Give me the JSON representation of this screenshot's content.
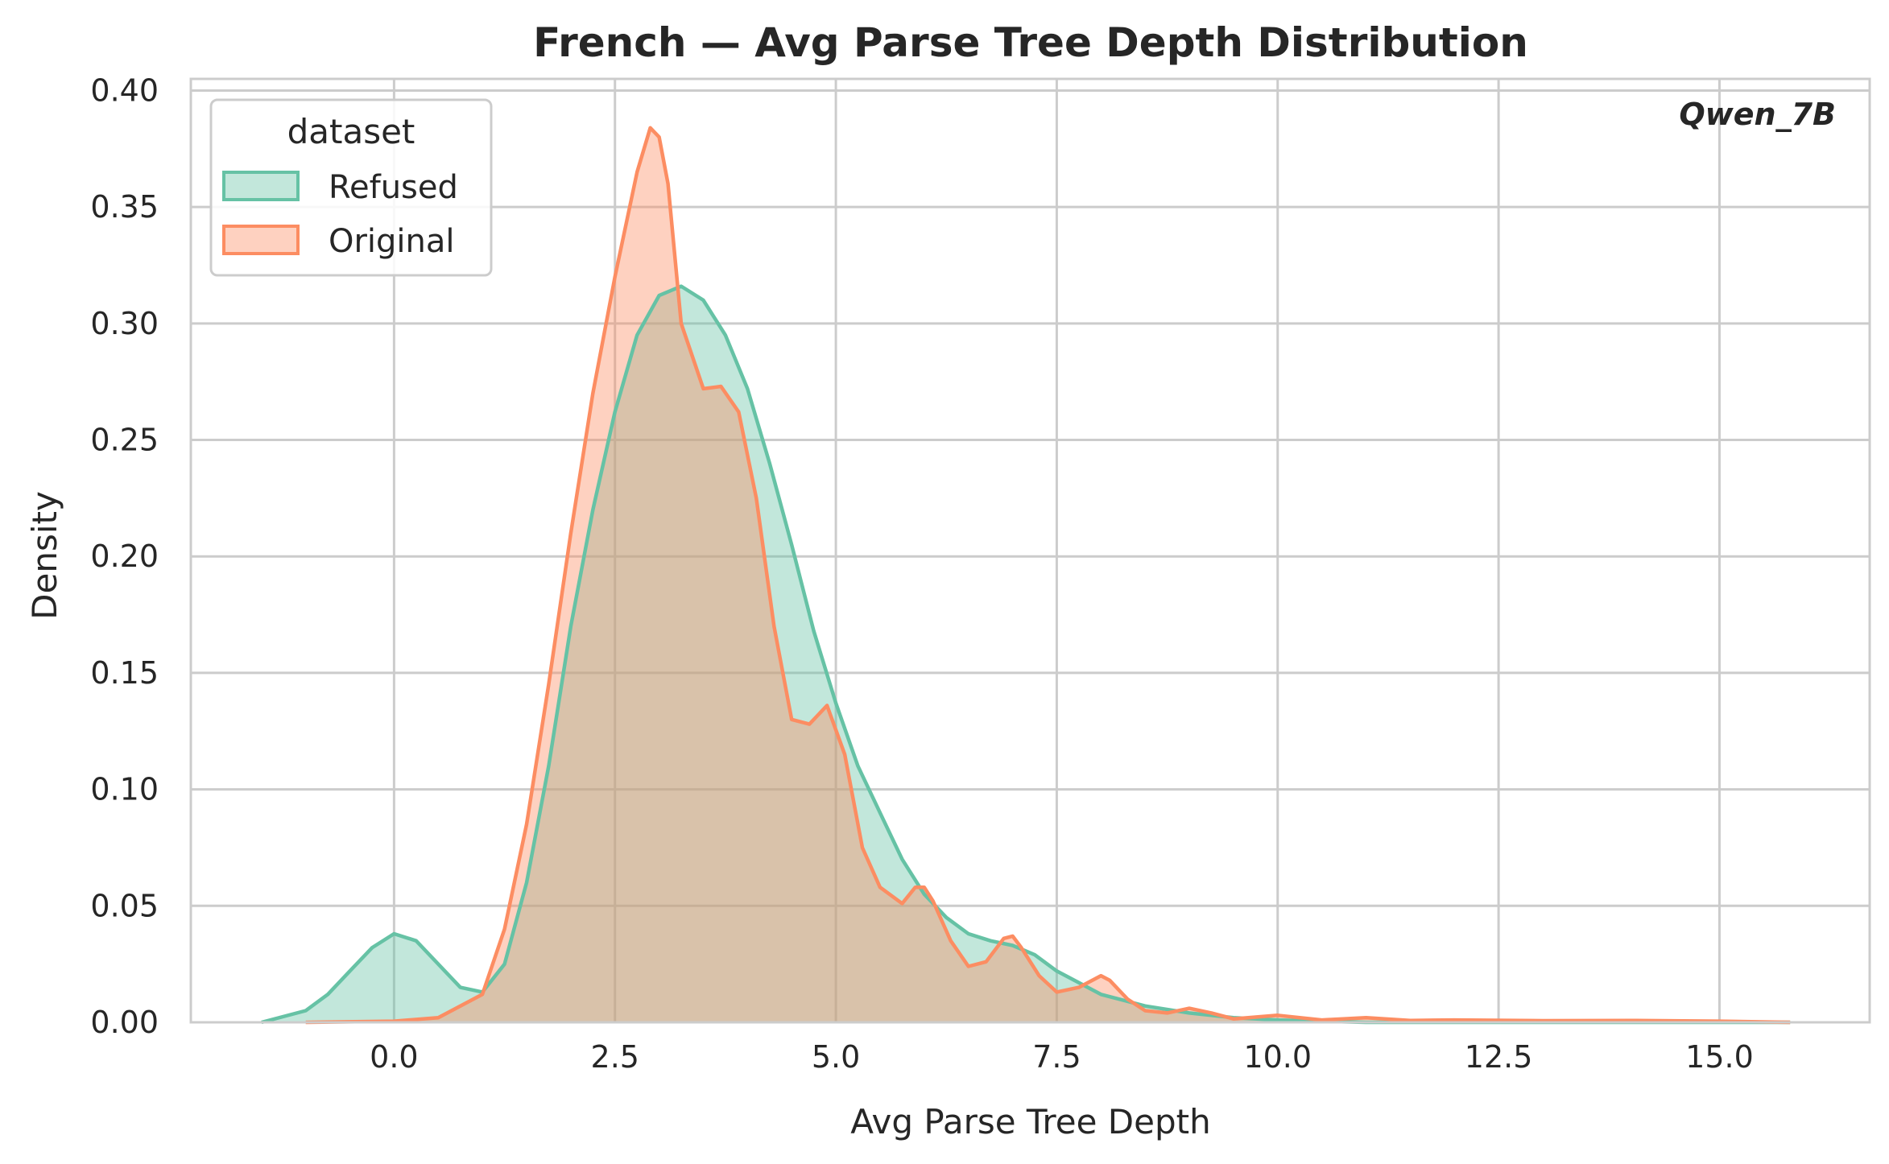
{
  "chart_data": {
    "type": "area",
    "title": "French — Avg Parse Tree Depth Distribution",
    "xlabel": "Avg Parse Tree Depth",
    "ylabel": "Density",
    "annotation": "Qwen_7B",
    "xlim": [
      -2.3,
      16.7
    ],
    "ylim": [
      0,
      0.405
    ],
    "xticks": [
      0.0,
      2.5,
      5.0,
      7.5,
      10.0,
      12.5,
      15.0
    ],
    "xtick_labels": [
      "0.0",
      "2.5",
      "5.0",
      "7.5",
      "10.0",
      "12.5",
      "15.0"
    ],
    "yticks": [
      0.0,
      0.05,
      0.1,
      0.15,
      0.2,
      0.25,
      0.3,
      0.35,
      0.4
    ],
    "ytick_labels": [
      "0.00",
      "0.05",
      "0.10",
      "0.15",
      "0.20",
      "0.25",
      "0.30",
      "0.35",
      "0.40"
    ],
    "grid": true,
    "legend": {
      "title": "dataset",
      "placement": "top-left"
    },
    "series": [
      {
        "name": "Refused",
        "color": "#66c2a5",
        "x": [
          -1.5,
          -1.0,
          -0.75,
          -0.5,
          -0.25,
          0.0,
          0.25,
          0.5,
          0.75,
          1.0,
          1.25,
          1.5,
          1.75,
          2.0,
          2.25,
          2.5,
          2.75,
          3.0,
          3.25,
          3.5,
          3.75,
          4.0,
          4.25,
          4.5,
          4.75,
          5.0,
          5.25,
          5.5,
          5.75,
          6.0,
          6.25,
          6.5,
          6.75,
          7.0,
          7.25,
          7.5,
          7.75,
          8.0,
          8.5,
          9.0,
          9.5,
          10.0,
          10.5,
          11.0,
          12.0,
          13.0,
          14.0,
          15.0,
          15.8
        ],
        "values": [
          0.0,
          0.005,
          0.012,
          0.022,
          0.032,
          0.038,
          0.035,
          0.025,
          0.015,
          0.013,
          0.025,
          0.06,
          0.11,
          0.17,
          0.22,
          0.262,
          0.295,
          0.312,
          0.316,
          0.31,
          0.295,
          0.272,
          0.24,
          0.205,
          0.168,
          0.137,
          0.11,
          0.09,
          0.07,
          0.055,
          0.045,
          0.038,
          0.035,
          0.033,
          0.029,
          0.022,
          0.017,
          0.012,
          0.007,
          0.004,
          0.002,
          0.001,
          0.0005,
          0.0,
          0.0,
          0.0,
          0.0,
          0.0,
          0.0
        ]
      },
      {
        "name": "Original",
        "color": "#fc8d62",
        "x": [
          -1.0,
          0.0,
          0.5,
          1.0,
          1.25,
          1.5,
          1.75,
          2.0,
          2.25,
          2.5,
          2.75,
          2.9,
          3.0,
          3.1,
          3.25,
          3.5,
          3.7,
          3.9,
          4.1,
          4.3,
          4.5,
          4.7,
          4.9,
          5.1,
          5.3,
          5.5,
          5.75,
          5.9,
          6.0,
          6.1,
          6.3,
          6.5,
          6.7,
          6.9,
          7.0,
          7.1,
          7.3,
          7.5,
          7.75,
          8.0,
          8.1,
          8.3,
          8.5,
          8.75,
          9.0,
          9.25,
          9.5,
          10.0,
          10.5,
          11.0,
          11.5,
          12.0,
          13.0,
          14.0,
          15.0,
          15.8
        ],
        "values": [
          0.0,
          0.0005,
          0.002,
          0.012,
          0.04,
          0.085,
          0.145,
          0.21,
          0.27,
          0.32,
          0.365,
          0.384,
          0.38,
          0.36,
          0.3,
          0.272,
          0.273,
          0.262,
          0.225,
          0.17,
          0.13,
          0.128,
          0.136,
          0.115,
          0.075,
          0.058,
          0.051,
          0.058,
          0.058,
          0.052,
          0.035,
          0.024,
          0.026,
          0.036,
          0.037,
          0.032,
          0.02,
          0.013,
          0.015,
          0.02,
          0.018,
          0.01,
          0.005,
          0.004,
          0.006,
          0.004,
          0.0015,
          0.003,
          0.001,
          0.002,
          0.0008,
          0.001,
          0.0007,
          0.0008,
          0.0005,
          0.0
        ]
      }
    ]
  }
}
